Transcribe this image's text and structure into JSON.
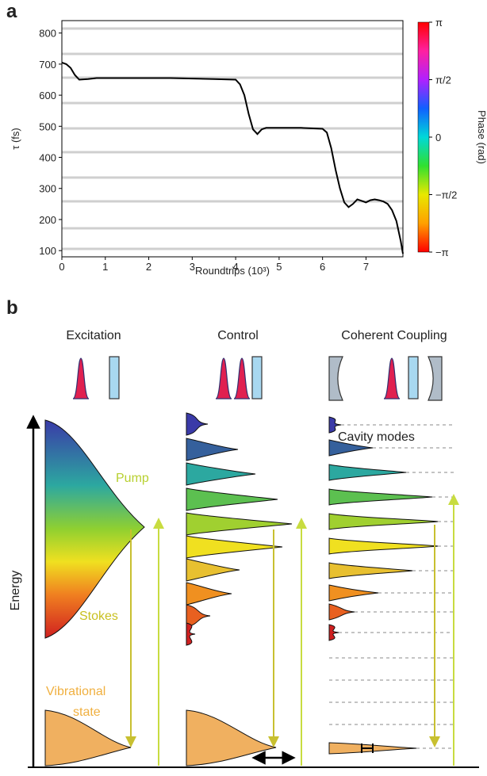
{
  "panel_labels": [
    "a",
    "b"
  ],
  "chart_data": {
    "type": "line",
    "xlabel": "Roundtrips (10³)",
    "ylabel": "τ (fs)",
    "x": [
      0,
      0.1,
      0.2,
      0.3,
      0.4,
      0.6,
      0.8,
      1.5,
      2.5,
      3.5,
      4.0,
      4.1,
      4.2,
      4.3,
      4.4,
      4.5,
      4.6,
      4.7,
      5.0,
      5.5,
      6.0,
      6.1,
      6.2,
      6.3,
      6.4,
      6.5,
      6.6,
      6.7,
      6.8,
      6.9,
      7.0,
      7.1,
      7.2,
      7.3,
      7.4,
      7.5,
      7.6,
      7.7,
      7.8,
      7.85
    ],
    "values": [
      705,
      700,
      688,
      665,
      650,
      652,
      655,
      655,
      655,
      652,
      650,
      635,
      600,
      540,
      490,
      475,
      490,
      495,
      495,
      495,
      492,
      480,
      430,
      360,
      300,
      255,
      240,
      250,
      265,
      260,
      255,
      262,
      265,
      262,
      258,
      250,
      230,
      195,
      130,
      90
    ],
    "color": "#000000",
    "xlim": [
      0,
      7.85
    ],
    "ylim": [
      80,
      840
    ],
    "xticks": [
      0,
      1,
      2,
      3,
      4,
      5,
      6,
      7
    ],
    "yticks": [
      100,
      200,
      300,
      400,
      500,
      600,
      700,
      800
    ],
    "colorbar": {
      "label": "Phase (rad)",
      "clim": [
        -3.1416,
        3.1416
      ],
      "colors": [
        "#ff0000",
        "#ffa000",
        "#e8e800",
        "#30e030",
        "#00d8d8",
        "#1060ff",
        "#b020ff",
        "#ff20a0",
        "#ff0000"
      ],
      "ticks": [
        {
          "value": 3.1416,
          "label": "π"
        },
        {
          "value": 1.5708,
          "label": "π/2"
        },
        0,
        {
          "value": -1.5708,
          "label": "−π/2"
        },
        {
          "value": -3.1416,
          "label": "−π"
        }
      ]
    }
  },
  "diagram": {
    "titles": [
      "Excitation",
      "Control",
      "Coherent Coupling"
    ],
    "axis_label": "Energy",
    "pump": "Pump",
    "stokes": "Stokes",
    "vibrational_state": [
      "Vibrational",
      "state"
    ],
    "cavity_modes": "Cavity modes"
  }
}
